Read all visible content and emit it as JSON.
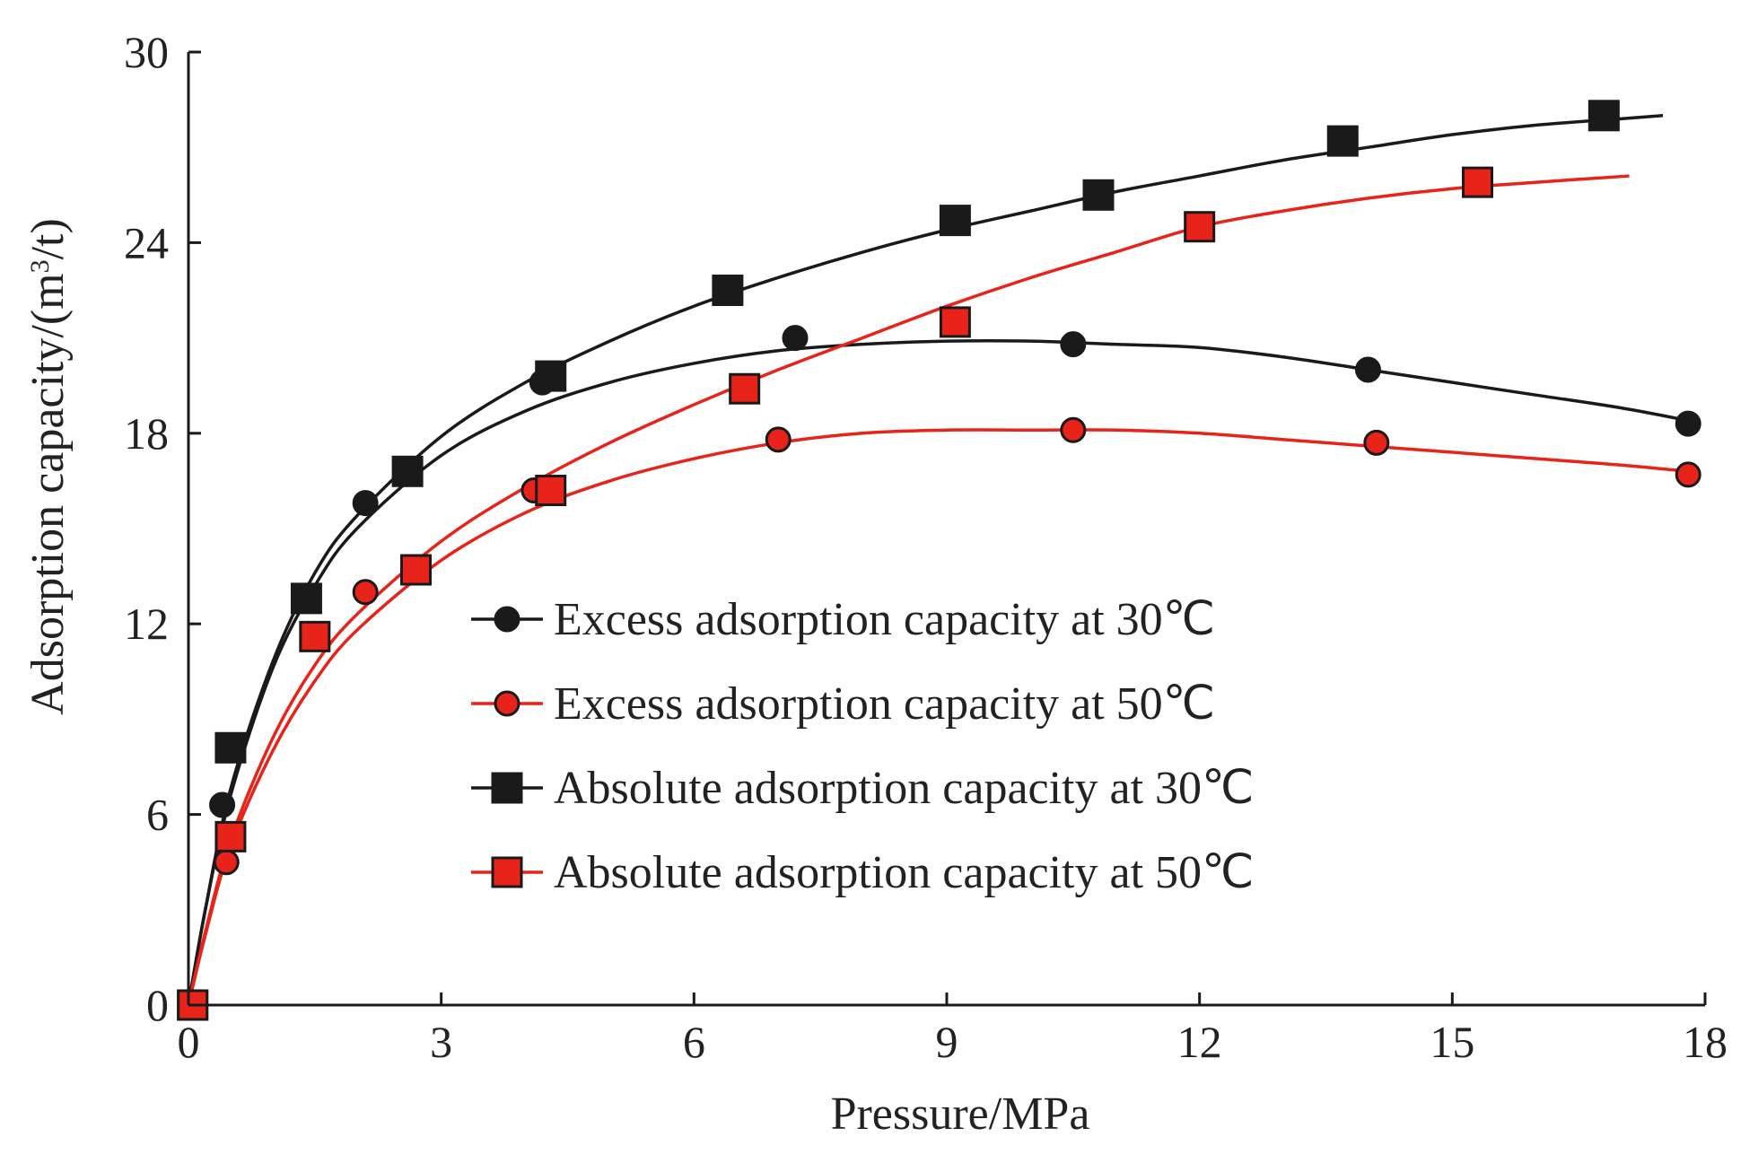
{
  "chart_data": {
    "type": "line",
    "title": "",
    "xlabel": "Pressure/MPa",
    "ylabel_prefix": "Adsorption capacity/(m",
    "ylabel_sup": "3",
    "ylabel_suffix": "/t)",
    "xlim": [
      0,
      18
    ],
    "ylim": [
      0,
      30
    ],
    "xticks": [
      0,
      3,
      6,
      9,
      12,
      15,
      18
    ],
    "yticks": [
      0,
      6,
      12,
      18,
      24,
      30
    ],
    "grid": false,
    "legend_position": "center",
    "colors": {
      "black": "#1a1a1a",
      "red": "#e8231a",
      "axis": "#1a1a1a"
    },
    "series": [
      {
        "name": "Excess adsorption capacity at 30℃",
        "marker": "circle",
        "color": "#1a1a1a",
        "points": [
          [
            0.05,
            0.0
          ],
          [
            0.4,
            6.3
          ],
          [
            2.1,
            15.8
          ],
          [
            4.2,
            19.6
          ],
          [
            7.2,
            21.0
          ],
          [
            10.5,
            20.8
          ],
          [
            14.0,
            20.0
          ],
          [
            17.8,
            18.3
          ]
        ],
        "curve": [
          [
            0,
            0
          ],
          [
            0.2,
            3.0
          ],
          [
            0.5,
            6.6
          ],
          [
            1.0,
            10.6
          ],
          [
            1.5,
            13.2
          ],
          [
            2.0,
            15.0
          ],
          [
            3.0,
            17.3
          ],
          [
            4.0,
            18.7
          ],
          [
            5.0,
            19.6
          ],
          [
            6.0,
            20.2
          ],
          [
            7.0,
            20.6
          ],
          [
            8.0,
            20.8
          ],
          [
            9.0,
            20.9
          ],
          [
            10.0,
            20.9
          ],
          [
            11.0,
            20.8
          ],
          [
            12.0,
            20.7
          ],
          [
            13.0,
            20.4
          ],
          [
            14.0,
            20.0
          ],
          [
            15.0,
            19.6
          ],
          [
            16.0,
            19.2
          ],
          [
            17.0,
            18.8
          ],
          [
            17.8,
            18.4
          ]
        ]
      },
      {
        "name": "Excess adsorption capacity at 50℃",
        "marker": "circle",
        "color": "#e8231a",
        "points": [
          [
            0.05,
            0.0
          ],
          [
            0.45,
            4.5
          ],
          [
            2.1,
            13.0
          ],
          [
            4.1,
            16.2
          ],
          [
            7.0,
            17.8
          ],
          [
            10.5,
            18.1
          ],
          [
            14.1,
            17.7
          ],
          [
            17.8,
            16.7
          ]
        ],
        "curve": [
          [
            0,
            0
          ],
          [
            0.2,
            2.2
          ],
          [
            0.5,
            5.0
          ],
          [
            1.0,
            8.0
          ],
          [
            1.5,
            10.2
          ],
          [
            2.0,
            11.8
          ],
          [
            3.0,
            14.0
          ],
          [
            4.0,
            15.5
          ],
          [
            5.0,
            16.5
          ],
          [
            6.0,
            17.2
          ],
          [
            7.0,
            17.7
          ],
          [
            8.0,
            18.0
          ],
          [
            9.0,
            18.1
          ],
          [
            10.0,
            18.1
          ],
          [
            11.0,
            18.1
          ],
          [
            12.0,
            18.0
          ],
          [
            13.0,
            17.8
          ],
          [
            14.0,
            17.6
          ],
          [
            15.0,
            17.4
          ],
          [
            16.0,
            17.2
          ],
          [
            17.0,
            17.0
          ],
          [
            17.8,
            16.8
          ]
        ]
      },
      {
        "name": "Absolute adsorption capacity at 30℃",
        "marker": "square",
        "color": "#1a1a1a",
        "points": [
          [
            0.05,
            0.0
          ],
          [
            0.5,
            8.1
          ],
          [
            1.4,
            12.8
          ],
          [
            2.6,
            16.8
          ],
          [
            4.3,
            19.8
          ],
          [
            6.4,
            22.5
          ],
          [
            9.1,
            24.7
          ],
          [
            10.8,
            25.5
          ],
          [
            13.7,
            27.2
          ],
          [
            16.8,
            28.0
          ]
        ],
        "curve": [
          [
            0,
            0
          ],
          [
            0.2,
            3.0
          ],
          [
            0.5,
            6.8
          ],
          [
            1.0,
            10.8
          ],
          [
            1.5,
            13.6
          ],
          [
            2.0,
            15.4
          ],
          [
            3.0,
            17.9
          ],
          [
            4.0,
            19.6
          ],
          [
            5.0,
            20.9
          ],
          [
            6.0,
            22.0
          ],
          [
            7.0,
            22.9
          ],
          [
            8.0,
            23.7
          ],
          [
            9.0,
            24.4
          ],
          [
            10.0,
            25.0
          ],
          [
            11.0,
            25.6
          ],
          [
            12.0,
            26.1
          ],
          [
            13.0,
            26.6
          ],
          [
            14.0,
            27.0
          ],
          [
            15.0,
            27.4
          ],
          [
            16.0,
            27.7
          ],
          [
            17.0,
            27.9
          ],
          [
            17.5,
            28.0
          ]
        ]
      },
      {
        "name": "Absolute adsorption capacity at 50℃",
        "marker": "square",
        "color": "#e8231a",
        "points": [
          [
            0.05,
            0.0
          ],
          [
            0.5,
            5.3
          ],
          [
            1.5,
            11.6
          ],
          [
            2.7,
            13.7
          ],
          [
            4.3,
            16.2
          ],
          [
            6.6,
            19.4
          ],
          [
            9.1,
            21.5
          ],
          [
            12.0,
            24.5
          ],
          [
            15.3,
            25.9
          ]
        ],
        "curve": [
          [
            0,
            0
          ],
          [
            0.2,
            2.3
          ],
          [
            0.5,
            5.2
          ],
          [
            1.0,
            8.4
          ],
          [
            1.5,
            10.7
          ],
          [
            2.0,
            12.3
          ],
          [
            3.0,
            14.6
          ],
          [
            4.0,
            16.3
          ],
          [
            5.0,
            17.7
          ],
          [
            6.0,
            18.9
          ],
          [
            7.0,
            20.0
          ],
          [
            8.0,
            21.0
          ],
          [
            9.0,
            22.0
          ],
          [
            10.0,
            22.9
          ],
          [
            11.0,
            23.7
          ],
          [
            12.0,
            24.5
          ],
          [
            13.0,
            25.0
          ],
          [
            14.0,
            25.4
          ],
          [
            15.0,
            25.7
          ],
          [
            16.0,
            25.9
          ],
          [
            17.1,
            26.1
          ]
        ]
      }
    ]
  }
}
